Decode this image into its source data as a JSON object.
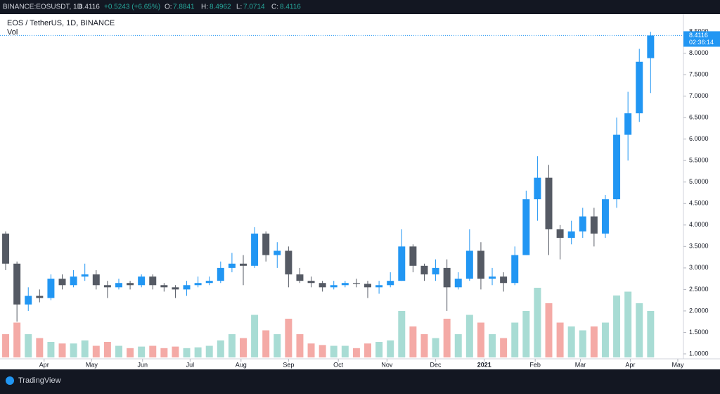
{
  "header": {
    "symbol": "BINANCE:EOSUSDT, 1D",
    "last": "8.4116",
    "change": "+0.5243 (+6.65%)",
    "o_label": "O:",
    "o": "7.8841",
    "h_label": "H:",
    "h": "8.4962",
    "l_label": "L:",
    "l": "7.0714",
    "c_label": "C:",
    "c": "8.4116"
  },
  "legend": {
    "title": "EOS / TetherUS, 1D, BINANCE",
    "volume": "Vol"
  },
  "price_tag": {
    "price": "8.4116",
    "countdown": "02:36:14"
  },
  "footer": {
    "brand": "TradingView"
  },
  "chart_data": {
    "type": "candlestick",
    "up_color": "#2196f3",
    "down_color": "#555a64",
    "volume_up_color": "#a8dcd4",
    "volume_down_color": "#f4aaa6",
    "open": [
      3.8,
      3.1,
      2.15,
      2.35,
      2.3,
      2.75,
      2.6,
      2.8,
      2.85,
      2.6,
      2.55,
      2.65,
      2.6,
      2.8,
      2.6,
      2.55,
      2.5,
      2.6,
      2.65,
      2.7,
      3.0,
      3.1,
      3.05,
      3.8,
      3.3,
      3.4,
      2.85,
      2.7,
      2.65,
      2.55,
      2.6,
      2.65,
      2.63,
      2.55,
      2.6,
      2.7,
      3.5,
      3.05,
      2.85,
      3.0,
      2.55,
      2.75,
      3.4,
      2.75,
      2.8,
      2.65,
      3.3,
      4.6,
      5.1,
      3.9,
      3.7,
      3.85,
      4.2,
      3.8,
      4.6,
      6.1,
      6.6,
      7.8841
    ],
    "high": [
      3.85,
      3.15,
      2.55,
      2.5,
      2.85,
      2.85,
      2.95,
      3.1,
      2.95,
      2.7,
      2.75,
      2.7,
      2.85,
      2.85,
      2.65,
      2.6,
      2.7,
      2.8,
      2.8,
      3.15,
      3.35,
      3.3,
      3.95,
      3.85,
      3.6,
      3.5,
      3.0,
      2.8,
      2.7,
      2.7,
      2.7,
      2.75,
      2.7,
      2.7,
      2.9,
      3.9,
      3.55,
      3.1,
      3.2,
      3.2,
      2.9,
      3.9,
      3.6,
      3.0,
      2.9,
      3.5,
      4.8,
      5.6,
      5.4,
      4.0,
      4.1,
      4.4,
      4.4,
      4.7,
      6.5,
      7.1,
      8.1,
      8.4962
    ],
    "low": [
      2.95,
      1.75,
      2.0,
      2.2,
      2.25,
      2.5,
      2.55,
      2.7,
      2.5,
      2.3,
      2.5,
      2.5,
      2.55,
      2.5,
      2.45,
      2.3,
      2.35,
      2.55,
      2.6,
      2.65,
      2.9,
      2.6,
      3.0,
      3.15,
      3.0,
      2.55,
      2.65,
      2.55,
      2.45,
      2.5,
      2.55,
      2.55,
      2.3,
      2.4,
      2.55,
      2.7,
      2.9,
      2.7,
      2.7,
      2.0,
      2.5,
      2.7,
      2.5,
      2.6,
      2.45,
      2.6,
      3.3,
      4.1,
      3.3,
      3.2,
      3.55,
      3.7,
      3.5,
      3.7,
      4.4,
      5.5,
      6.4,
      7.0714
    ],
    "close": [
      3.1,
      2.15,
      2.35,
      2.3,
      2.75,
      2.6,
      2.8,
      2.85,
      2.6,
      2.55,
      2.65,
      2.6,
      2.8,
      2.6,
      2.55,
      2.5,
      2.6,
      2.65,
      2.7,
      3.0,
      3.1,
      3.05,
      3.8,
      3.3,
      3.4,
      2.85,
      2.7,
      2.65,
      2.55,
      2.6,
      2.65,
      2.63,
      2.55,
      2.6,
      2.7,
      3.5,
      3.05,
      2.85,
      3.0,
      2.55,
      2.75,
      3.4,
      2.75,
      2.8,
      2.65,
      3.3,
      4.6,
      5.1,
      3.9,
      3.7,
      3.85,
      4.2,
      3.8,
      4.6,
      6.1,
      6.6,
      7.8,
      8.4116
    ],
    "volume": [
      30,
      45,
      30,
      25,
      20,
      18,
      18,
      22,
      15,
      20,
      15,
      12,
      14,
      15,
      12,
      14,
      12,
      13,
      15,
      22,
      30,
      25,
      55,
      35,
      30,
      50,
      30,
      18,
      16,
      15,
      15,
      12,
      18,
      20,
      22,
      60,
      40,
      30,
      25,
      50,
      30,
      55,
      45,
      30,
      25,
      45,
      60,
      90,
      70,
      45,
      40,
      35,
      40,
      45,
      80,
      85,
      70,
      60
    ],
    "volume_lim": [
      0,
      100
    ],
    "xlim": [
      -0.5,
      59.9
    ],
    "xticks": [
      {
        "value": 3.4,
        "label": "Apr"
      },
      {
        "value": 7.6,
        "label": "May"
      },
      {
        "value": 12.1,
        "label": "Jun"
      },
      {
        "value": 16.3,
        "label": "Jul"
      },
      {
        "value": 20.8,
        "label": "Aug"
      },
      {
        "value": 25.0,
        "label": "Sep"
      },
      {
        "value": 29.4,
        "label": "Oct"
      },
      {
        "value": 33.7,
        "label": "Nov"
      },
      {
        "value": 38.0,
        "label": "Dec"
      },
      {
        "value": 42.3,
        "label": "2021"
      },
      {
        "value": 46.8,
        "label": "Feb"
      },
      {
        "value": 50.8,
        "label": "Mar"
      },
      {
        "value": 55.2,
        "label": "Apr"
      },
      {
        "value": 59.4,
        "label": "May"
      }
    ],
    "ylim": [
      0.885,
      8.91
    ],
    "yticks": [
      {
        "value": 1,
        "label": "1.0000"
      },
      {
        "value": 1.5,
        "label": "1.5000"
      },
      {
        "value": 2,
        "label": "2.0000"
      },
      {
        "value": 2.5,
        "label": "2.5000"
      },
      {
        "value": 3,
        "label": "3.0000"
      },
      {
        "value": 3.5,
        "label": "3.5000"
      },
      {
        "value": 4,
        "label": "4.0000"
      },
      {
        "value": 4.5,
        "label": "4.5000"
      },
      {
        "value": 5,
        "label": "5.0000"
      },
      {
        "value": 5.5,
        "label": "5.5000"
      },
      {
        "value": 6,
        "label": "6.0000"
      },
      {
        "value": 6.5,
        "label": "6.5000"
      },
      {
        "value": 7,
        "label": "7.0000"
      },
      {
        "value": 7.5,
        "label": "7.5000"
      },
      {
        "value": 8,
        "label": "8.0000"
      },
      {
        "value": 8.5,
        "label": "8.5000"
      }
    ]
  }
}
